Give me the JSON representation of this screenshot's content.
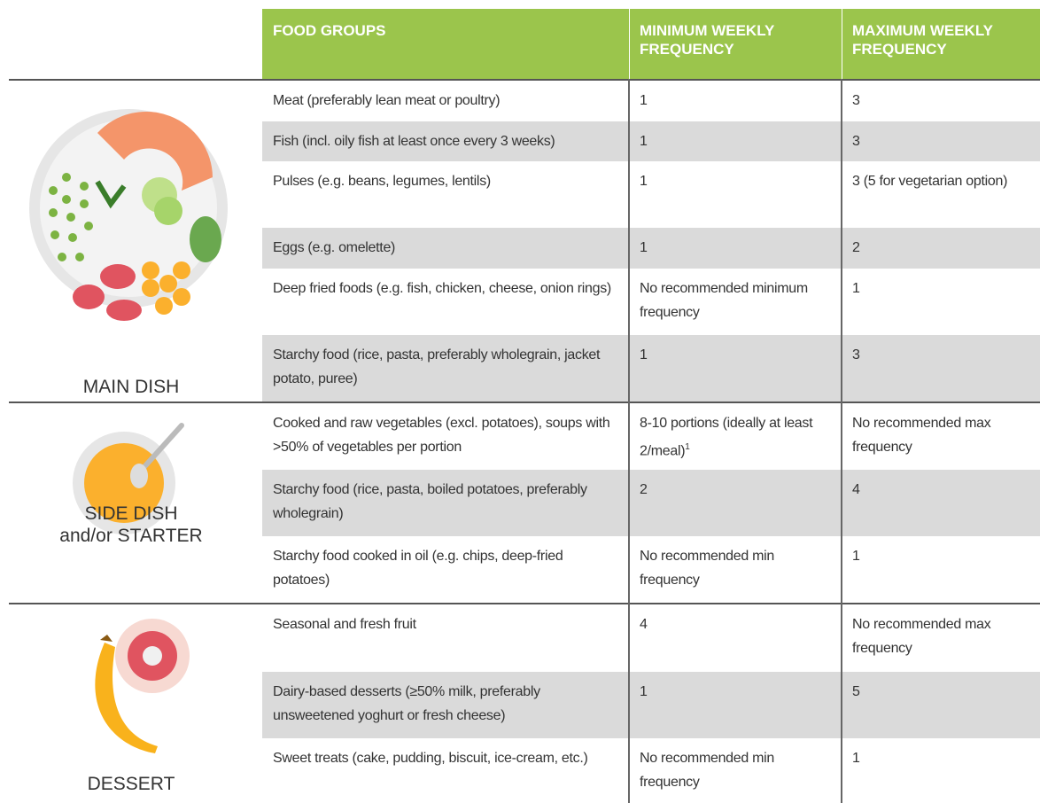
{
  "header": {
    "columns": [
      "FOOD GROUPS",
      "MINIMUM WEEKLY FREQUENCY",
      "MAXIMUM WEEKLY FREQUENCY"
    ]
  },
  "sections": [
    {
      "label": [
        "MAIN DISH"
      ],
      "rows": [
        {
          "food": "Meat (preferably lean meat or poultry)",
          "min": "1",
          "max": "3"
        },
        {
          "food": "Fish (incl. oily fish at least once every 3 weeks)",
          "min": "1",
          "max": "3"
        },
        {
          "food": "Pulses (e.g. beans, legumes, lentils)",
          "min": "1",
          "max": "3 (5 for vegetarian option)"
        },
        {
          "food": "Eggs (e.g. omelette)",
          "min": "1",
          "max": "2"
        },
        {
          "food": "Deep fried foods (e.g. fish, chicken, cheese, onion rings)",
          "min": "No recommended minimum frequency",
          "max": "1"
        },
        {
          "food": "Starchy food (rice, pasta, preferably wholegrain, jacket potato, puree)",
          "min": "1",
          "max": "3"
        }
      ]
    },
    {
      "label": [
        "SIDE DISH",
        "and/or STARTER"
      ],
      "rows": [
        {
          "food": "Cooked and raw vegetables (excl. potatoes), soups with >50% of vegetables per portion",
          "min": "8-10 portions (ideally at least 2/meal)",
          "min_note": "1",
          "max": "No recommended max frequency"
        },
        {
          "food": "Starchy food (rice, pasta, boiled potatoes, preferably wholegrain)",
          "min": "2",
          "max": "4"
        },
        {
          "food": "Starchy food cooked in oil (e.g. chips, deep-fried potatoes)",
          "min": "No recommended min frequency",
          "max": "1"
        }
      ]
    },
    {
      "label": [
        "DESSERT"
      ],
      "rows": [
        {
          "food": "Seasonal and fresh fruit",
          "min": "4",
          "max": "No recommended max frequency"
        },
        {
          "food": "Dairy-based desserts (≥50% milk, preferably unsweetened yoghurt or fresh cheese)",
          "min": "1",
          "max": "5"
        },
        {
          "food": "Sweet treats (cake, pudding, biscuit, ice-cream, etc.)",
          "min": "No recommended min frequency",
          "max": "1"
        }
      ]
    }
  ]
}
